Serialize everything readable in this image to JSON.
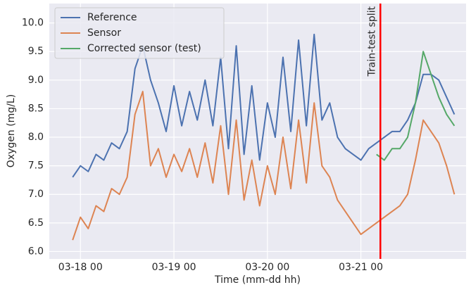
{
  "chart_data": {
    "type": "line",
    "xlabel": "Time (mm-dd hh)",
    "ylabel": "Oxygen (mg/L)",
    "x": [
      "03-17 22",
      "03-18 00",
      "03-18 02",
      "03-18 04",
      "03-18 06",
      "03-18 08",
      "03-18 10",
      "03-18 12",
      "03-18 14",
      "03-18 16",
      "03-18 18",
      "03-18 20",
      "03-18 22",
      "03-19 00",
      "03-19 02",
      "03-19 04",
      "03-19 06",
      "03-19 08",
      "03-19 10",
      "03-19 12",
      "03-19 14",
      "03-19 16",
      "03-19 18",
      "03-19 20",
      "03-19 22",
      "03-20 00",
      "03-20 02",
      "03-20 04",
      "03-20 06",
      "03-20 08",
      "03-20 10",
      "03-20 12",
      "03-20 14",
      "03-20 16",
      "03-20 18",
      "03-20 20",
      "03-20 22",
      "03-21 00",
      "03-21 02",
      "03-21 04",
      "03-21 06",
      "03-21 08",
      "03-21 10",
      "03-21 12",
      "03-21 14",
      "03-21 16",
      "03-21 18",
      "03-21 20",
      "03-21 22",
      "03-22 00"
    ],
    "series": [
      {
        "name": "Reference",
        "color": "#4c72b0",
        "values": [
          7.3,
          7.5,
          7.4,
          7.7,
          7.6,
          7.9,
          7.8,
          8.1,
          9.2,
          9.6,
          9.0,
          8.6,
          8.1,
          8.9,
          8.2,
          8.8,
          8.3,
          9.0,
          8.2,
          9.4,
          7.8,
          9.6,
          7.7,
          8.9,
          7.6,
          8.6,
          8.0,
          9.4,
          8.1,
          9.7,
          8.2,
          9.8,
          8.3,
          8.6,
          8.0,
          7.8,
          7.7,
          7.6,
          7.8,
          7.9,
          8.0,
          8.1,
          8.1,
          8.3,
          8.6,
          9.1,
          9.1,
          9.0,
          8.7,
          8.4
        ]
      },
      {
        "name": "Sensor",
        "color": "#dd8452",
        "values": [
          6.2,
          6.6,
          6.4,
          6.8,
          6.7,
          7.1,
          7.0,
          7.3,
          8.4,
          8.8,
          7.5,
          7.8,
          7.3,
          7.7,
          7.4,
          7.8,
          7.3,
          7.9,
          7.2,
          8.2,
          7.0,
          8.3,
          6.9,
          7.6,
          6.8,
          7.5,
          7.0,
          8.0,
          7.1,
          8.3,
          7.2,
          8.6,
          7.5,
          7.3,
          6.9,
          6.7,
          6.5,
          6.3,
          6.4,
          6.5,
          6.6,
          6.7,
          6.8,
          7.0,
          7.6,
          8.3,
          8.1,
          7.9,
          7.5,
          7.0
        ]
      },
      {
        "name": "Corrected sensor (test)",
        "color": "#55a868",
        "values": [
          null,
          null,
          null,
          null,
          null,
          null,
          null,
          null,
          null,
          null,
          null,
          null,
          null,
          null,
          null,
          null,
          null,
          null,
          null,
          null,
          null,
          null,
          null,
          null,
          null,
          null,
          null,
          null,
          null,
          null,
          null,
          null,
          null,
          null,
          null,
          null,
          null,
          null,
          null,
          7.7,
          7.6,
          7.8,
          7.8,
          8.0,
          8.6,
          9.5,
          9.1,
          8.7,
          8.4,
          8.2
        ]
      }
    ],
    "vline": {
      "x": "03-21 05",
      "label": "Train-test split",
      "color": "#ff0000"
    },
    "xlim": [
      "03-17 16",
      "03-22 03"
    ],
    "xticks": [
      "03-18 00",
      "03-19 00",
      "03-20 00",
      "03-21 00"
    ],
    "ylim": [
      5.87,
      10.34
    ],
    "yticks": [
      {
        "value": 6,
        "label": "6.0"
      },
      6.5,
      {
        "value": 7,
        "label": "7.0"
      },
      7.5,
      {
        "value": 8,
        "label": "8.0"
      },
      8.5,
      {
        "value": 9,
        "label": "9.0"
      },
      9.5,
      {
        "value": 10,
        "label": "10.0"
      }
    ],
    "grid": true,
    "legend": "upper left"
  }
}
